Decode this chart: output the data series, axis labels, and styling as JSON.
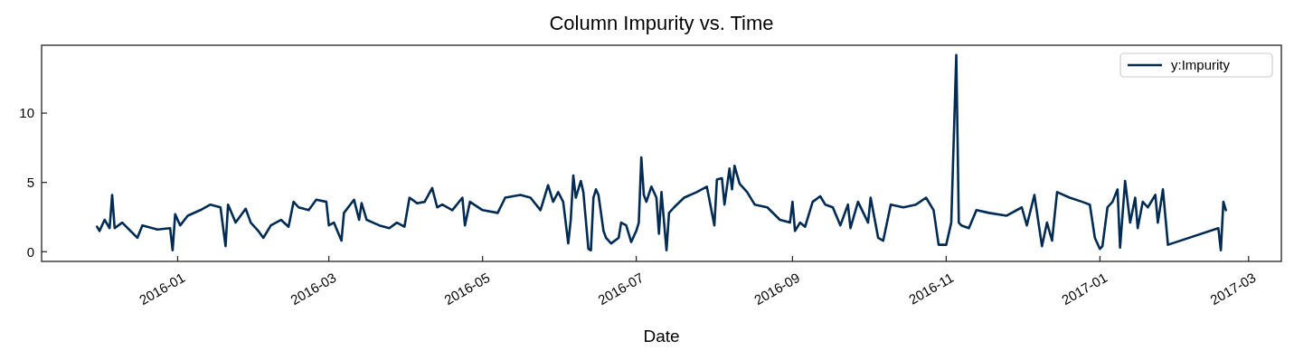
{
  "chart_data": {
    "type": "line",
    "title": "Column Impurity vs. Time",
    "xlabel": "Date",
    "x": [
      "2015-11-30",
      "2015-12-01",
      "2015-12-03",
      "2015-12-05",
      "2015-12-06",
      "2015-12-07",
      "2015-12-10",
      "2015-12-16",
      "2015-12-18",
      "2015-12-24",
      "2015-12-29",
      "2015-12-30",
      "2015-12-31",
      "2016-01-02",
      "2016-01-05",
      "2016-01-10",
      "2016-01-14",
      "2016-01-18",
      "2016-01-20",
      "2016-01-21",
      "2016-01-24",
      "2016-01-28",
      "2016-01-30",
      "2016-02-02",
      "2016-02-04",
      "2016-02-07",
      "2016-02-11",
      "2016-02-14",
      "2016-02-16",
      "2016-02-18",
      "2016-02-22",
      "2016-02-25",
      "2016-02-29",
      "2016-03-01",
      "2016-03-03",
      "2016-03-06",
      "2016-03-07",
      "2016-03-11",
      "2016-03-13",
      "2016-03-14",
      "2016-03-16",
      "2016-03-21",
      "2016-03-25",
      "2016-03-28",
      "2016-03-31",
      "2016-04-02",
      "2016-04-05",
      "2016-04-08",
      "2016-04-11",
      "2016-04-13",
      "2016-04-15",
      "2016-04-19",
      "2016-04-23",
      "2016-04-24",
      "2016-04-26",
      "2016-05-01",
      "2016-05-07",
      "2016-05-10",
      "2016-05-16",
      "2016-05-20",
      "2016-05-24",
      "2016-05-27",
      "2016-05-29",
      "2016-05-31",
      "2016-06-02",
      "2016-06-04",
      "2016-06-05",
      "2016-06-06",
      "2016-06-07",
      "2016-06-09",
      "2016-06-10",
      "2016-06-12",
      "2016-06-13",
      "2016-06-14",
      "2016-06-15",
      "2016-06-16",
      "2016-06-18",
      "2016-06-19",
      "2016-06-21",
      "2016-06-24",
      "2016-06-25",
      "2016-06-27",
      "2016-06-29",
      "2016-07-01",
      "2016-07-02",
      "2016-07-03",
      "2016-07-04",
      "2016-07-05",
      "2016-07-07",
      "2016-07-09",
      "2016-07-10",
      "2016-07-11",
      "2016-07-13",
      "2016-07-14",
      "2016-07-16",
      "2016-07-20",
      "2016-07-25",
      "2016-07-29",
      "2016-08-01",
      "2016-08-02",
      "2016-08-04",
      "2016-08-05",
      "2016-08-07",
      "2016-08-08",
      "2016-08-09",
      "2016-08-11",
      "2016-08-14",
      "2016-08-17",
      "2016-08-22",
      "2016-08-27",
      "2016-08-31",
      "2016-09-01",
      "2016-09-02",
      "2016-09-04",
      "2016-09-06",
      "2016-09-09",
      "2016-09-12",
      "2016-09-14",
      "2016-09-17",
      "2016-09-20",
      "2016-09-23",
      "2016-09-24",
      "2016-09-27",
      "2016-10-01",
      "2016-10-02",
      "2016-10-05",
      "2016-10-07",
      "2016-10-10",
      "2016-10-15",
      "2016-10-20",
      "2016-10-24",
      "2016-10-27",
      "2016-10-29",
      "2016-11-01",
      "2016-11-03",
      "2016-11-05",
      "2016-11-06",
      "2016-11-07",
      "2016-11-10",
      "2016-11-13",
      "2016-11-18",
      "2016-11-25",
      "2016-12-01",
      "2016-12-03",
      "2016-12-06",
      "2016-12-09",
      "2016-12-11",
      "2016-12-13",
      "2016-12-15",
      "2016-12-20",
      "2016-12-25",
      "2016-12-28",
      "2016-12-30",
      "2017-01-01",
      "2017-01-02",
      "2017-01-04",
      "2017-01-06",
      "2017-01-08",
      "2017-01-09",
      "2017-01-11",
      "2017-01-13",
      "2017-01-15",
      "2017-01-16",
      "2017-01-18",
      "2017-01-20",
      "2017-01-23",
      "2017-01-24",
      "2017-01-26",
      "2017-01-28",
      "2017-02-17",
      "2017-02-18",
      "2017-02-19",
      "2017-02-20"
    ],
    "series": [
      {
        "name": "y:Impurity",
        "color": "#002b55",
        "values": [
          1.8,
          1.5,
          2.3,
          1.7,
          4.1,
          1.7,
          2.1,
          1.0,
          1.9,
          1.6,
          1.7,
          0.1,
          2.7,
          1.9,
          2.6,
          3.0,
          3.4,
          3.2,
          0.4,
          3.4,
          2.1,
          3.1,
          2.1,
          1.5,
          1.0,
          1.9,
          2.3,
          1.8,
          3.6,
          3.2,
          3.0,
          3.75,
          3.6,
          1.9,
          2.1,
          0.8,
          2.8,
          3.75,
          2.3,
          3.5,
          2.3,
          1.9,
          1.7,
          2.1,
          1.8,
          3.9,
          3.5,
          3.6,
          4.6,
          3.2,
          3.4,
          3.0,
          3.9,
          1.9,
          3.6,
          3.0,
          2.8,
          3.9,
          4.1,
          3.9,
          3.0,
          4.8,
          3.6,
          4.3,
          3.6,
          0.6,
          2.3,
          5.5,
          3.9,
          5.1,
          4.3,
          0.2,
          0.1,
          3.9,
          4.5,
          4.1,
          1.5,
          1.0,
          0.6,
          1.0,
          2.1,
          1.9,
          0.7,
          1.5,
          2.1,
          6.8,
          4.1,
          3.6,
          4.7,
          3.9,
          1.3,
          4.3,
          0.1,
          2.8,
          3.2,
          3.9,
          4.3,
          4.7,
          1.9,
          5.2,
          5.3,
          3.4,
          6.0,
          4.5,
          6.2,
          4.9,
          4.3,
          3.4,
          3.2,
          2.3,
          2.1,
          3.6,
          1.5,
          2.1,
          1.8,
          3.6,
          4.0,
          3.4,
          3.2,
          1.9,
          3.4,
          1.7,
          3.6,
          2.1,
          3.9,
          1.0,
          0.8,
          3.4,
          3.2,
          3.4,
          3.9,
          3.0,
          0.5,
          0.5,
          2.1,
          14.2,
          2.1,
          1.9,
          1.7,
          3.0,
          2.8,
          2.6,
          3.2,
          1.9,
          4.1,
          0.4,
          2.1,
          0.8,
          4.3,
          3.9,
          3.6,
          3.4,
          1.0,
          0.2,
          0.4,
          3.2,
          3.6,
          4.5,
          0.3,
          5.1,
          2.1,
          3.9,
          1.7,
          3.6,
          3.2,
          4.1,
          2.1,
          4.5,
          0.5,
          1.7,
          0.1,
          3.6,
          3.0
        ]
      }
    ],
    "xlim": [
      "2015-11-08",
      "2017-03-14"
    ],
    "xticks": [
      "2016-01",
      "2016-03",
      "2016-05",
      "2016-07",
      "2016-09",
      "2016-11",
      "2017-01",
      "2017-03"
    ],
    "ylim": [
      -0.7,
      14.9
    ],
    "yticks": [
      0,
      5,
      10
    ],
    "legend": "top right"
  }
}
